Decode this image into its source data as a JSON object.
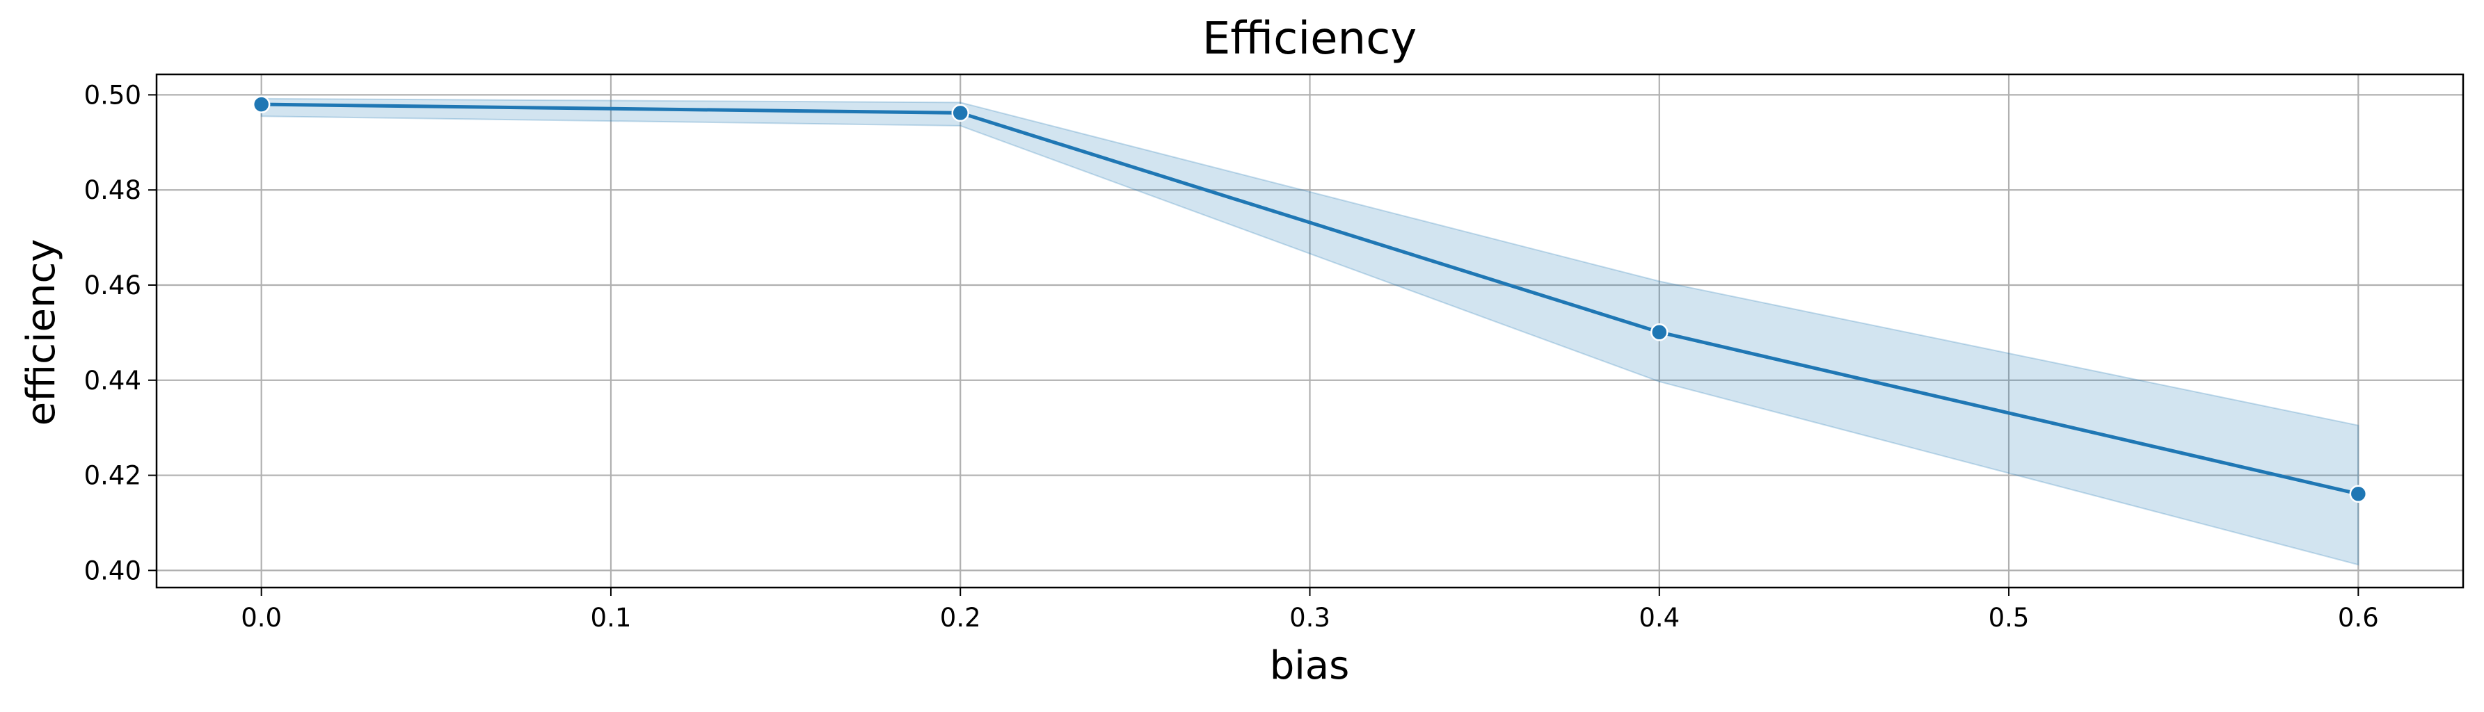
{
  "chart_data": {
    "type": "line",
    "title": "Efficiency",
    "xlabel": "bias",
    "ylabel": "efficiency",
    "x": [
      0.0,
      0.2,
      0.4,
      0.6
    ],
    "series": [
      {
        "values": [
          0.498,
          0.4962,
          0.4501,
          0.4161
        ],
        "ci_lower": [
          0.4955,
          0.4935,
          0.4397,
          0.4012
        ],
        "ci_upper": [
          0.4992,
          0.4984,
          0.4608,
          0.4305
        ]
      }
    ],
    "xlim": [
      -0.03,
      0.63
    ],
    "ylim": [
      0.3964,
      0.5043
    ],
    "xticks": [
      0.0,
      0.1,
      0.2,
      0.3,
      0.4,
      0.5,
      0.6
    ],
    "xtick_labels": [
      "0.0",
      "0.1",
      "0.2",
      "0.3",
      "0.4",
      "0.5",
      "0.6"
    ],
    "yticks": [
      0.4,
      0.42,
      0.44,
      0.46,
      0.48,
      0.5
    ],
    "ytick_labels": [
      "0.40",
      "0.42",
      "0.44",
      "0.46",
      "0.48",
      "0.50"
    ],
    "grid": true,
    "colors": {
      "line": "#1f77b4",
      "band": "#1f77b4",
      "grid": "#b0b0b0",
      "marker_edge": "#ffffff"
    }
  }
}
